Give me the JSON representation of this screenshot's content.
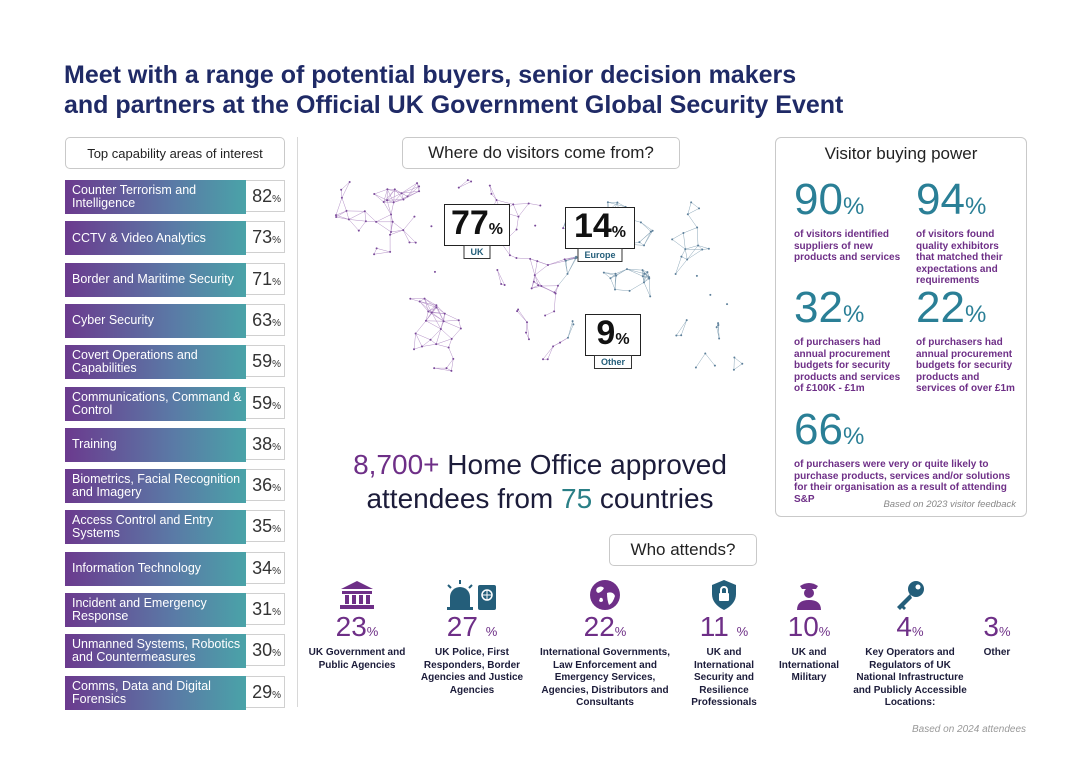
{
  "title": {
    "line1": "Meet with a range of potential buyers, senior decision makers",
    "line2": "and partners at the Official UK Government Global Security Event"
  },
  "capabilities": {
    "header": "Top capability areas of interest",
    "items": [
      {
        "label": "Counter Terrorism and Intelligence",
        "value": "82",
        "unit": "%"
      },
      {
        "label": "CCTV & Video Analytics",
        "value": "73",
        "unit": "%"
      },
      {
        "label": "Border and Maritime Security",
        "value": "71",
        "unit": "%"
      },
      {
        "label": "Cyber Security",
        "value": "63",
        "unit": "%"
      },
      {
        "label": "Covert Operations and Capabilities",
        "value": "59",
        "unit": "%"
      },
      {
        "label": "Communications, Command & Control",
        "value": "59",
        "unit": "%"
      },
      {
        "label": "Training",
        "value": "38",
        "unit": "%"
      },
      {
        "label": "Biometrics, Facial Recognition and Imagery",
        "value": "36",
        "unit": "%"
      },
      {
        "label": "Access Control and Entry Systems",
        "value": "35",
        "unit": "%"
      },
      {
        "label": "Information Technology",
        "value": "34",
        "unit": "%"
      },
      {
        "label": "Incident and Emergency Response",
        "value": "31",
        "unit": "%"
      },
      {
        "label": "Unmanned Systems, Robotics and Countermeasures",
        "value": "30",
        "unit": "%"
      },
      {
        "label": "Comms, Data and Digital Forensics",
        "value": "29",
        "unit": "%"
      }
    ]
  },
  "map": {
    "header": "Where do visitors come from?",
    "uk": {
      "value": "77",
      "unit": "%",
      "tag": "UK"
    },
    "europe": {
      "value": "14",
      "unit": "%",
      "tag": "Europe"
    },
    "other": {
      "value": "9",
      "unit": "%",
      "tag": "Other"
    }
  },
  "headline": {
    "count": "8,700+",
    "text1": " Home Office approved",
    "text2": "attendees from ",
    "countries": "75",
    "text3": " countries"
  },
  "buying_power": {
    "title": "Visitor buying power",
    "stats": [
      {
        "value": "90",
        "unit": "%",
        "text": "of visitors identified suppliers of new products and services"
      },
      {
        "value": "94",
        "unit": "%",
        "text": "of visitors found quality exhibitors that matched their expectations and requirements"
      },
      {
        "value": "32",
        "unit": "%",
        "text": "of purchasers had annual procurement budgets for security products and services of £100K - £1m"
      },
      {
        "value": "22",
        "unit": "%",
        "text": "of purchasers had annual procurement budgets for security products and services of over £1m"
      },
      {
        "value": "66",
        "unit": "%",
        "text": "of purchasers were very or quite likely to purchase products, services and/or solutions for their organisation as a result of attending S&P"
      }
    ],
    "note": "Based on 2023 visitor feedback"
  },
  "who_attends": {
    "header": "Who attends?",
    "items": [
      {
        "value": "23",
        "unit": "%",
        "label": "UK Government and Public Agencies",
        "icon": "government-building-icon"
      },
      {
        "value": "27",
        "unit": "%",
        "label": "UK Police, First Responders, Border Agencies and Justice Agencies",
        "icon": "siren-passport-icon"
      },
      {
        "value": "22",
        "unit": "%",
        "label": "International Governments, Law Enforcement and Emergency Services, Agencies, Distributors and Consultants",
        "icon": "globe-icon"
      },
      {
        "value": "11",
        "unit": "%",
        "label": "UK and International Security and Resilience Professionals",
        "icon": "shield-lock-icon"
      },
      {
        "value": "10",
        "unit": "%",
        "label": "UK and International Military",
        "icon": "military-officer-icon"
      },
      {
        "value": "4",
        "unit": "%",
        "label": "Key Operators and Regulators of UK National Infrastructure and Publicly Accessible Locations:",
        "icon": "key-icon"
      },
      {
        "value": "3",
        "unit": "%",
        "label": "Other",
        "icon": ""
      }
    ],
    "note": "Based on 2024 attendees"
  },
  "colors": {
    "navy": "#1f2a66",
    "purple": "#6e2f87",
    "teal": "#2a7f96"
  }
}
